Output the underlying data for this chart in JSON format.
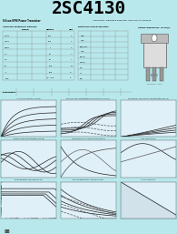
{
  "title": "2SC4130",
  "title_bg": "#00FFFF",
  "title_color": "#000000",
  "title_fontsize": 14,
  "page_bg": "#B8E8EC",
  "graph_bg": "#E0F0F8",
  "grid_color": "#B0CCDD",
  "white_bg": "#FFFFFF",
  "subtitle_left": "Silicon NPN Power Transistor",
  "subtitle_mid": "Application: Switching Regulator and Inverter Purpose",
  "graph_titles_row1": [
    "Ic-Vce Characteristics (Typ.25)",
    "Pulse/Impulse vs Temperature Characteristics (Typ.25)",
    "h-Parameter Temperature Characteristics (Typ.25)"
  ],
  "graph_titles_row2": [
    "Rise/Fall Time Characteristics (Typ.25)",
    "Turn-On/Turn-Off Characteristics (Typ.25)",
    "fT vs Temperature"
  ],
  "graph_titles_row3": [
    "Safe Operating Area (Single Pulse)",
    "Reverse Base-Emitter Operating Areas",
    "Air Fins. datasheet"
  ],
  "page_number": "88"
}
